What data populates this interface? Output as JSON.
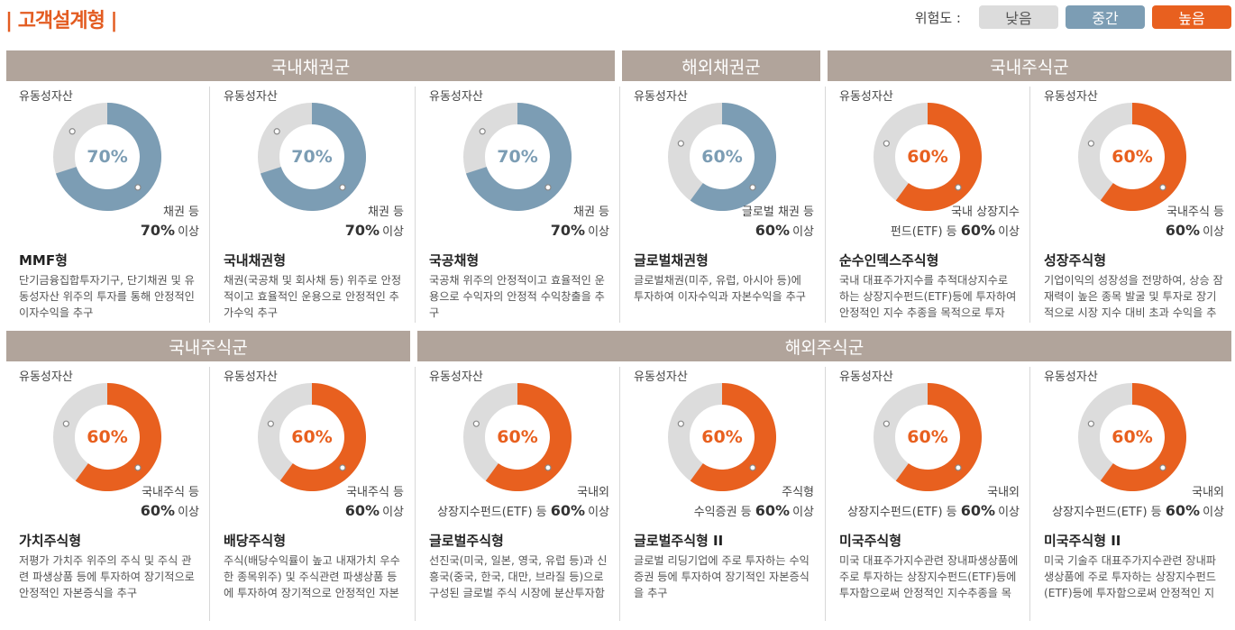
{
  "page": {
    "title": "| 고객설계형 |"
  },
  "legend": {
    "label": "위험도 :",
    "items": [
      {
        "label": "낮음",
        "bg": "#dcdcdc",
        "fg": "#555555"
      },
      {
        "label": "중간",
        "bg": "#7c9db4",
        "fg": "#ffffff"
      },
      {
        "label": "높음",
        "bg": "#e8601f",
        "fg": "#ffffff"
      }
    ]
  },
  "colors": {
    "blue": "#7c9db4",
    "orange": "#e8601f",
    "gray": "#dcdcdc"
  },
  "rows": [
    {
      "categories": [
        "국내채권군",
        "해외채권군",
        "국내주식군"
      ],
      "cards": [
        {
          "liquid_label": "유동성자산",
          "percent": 70,
          "percent_label": "70%",
          "risk": "blue",
          "right_label": "채권 등",
          "ratio_value": "70%",
          "ratio_suffix": "이상",
          "name": "MMF형",
          "desc": "단기금융집합투자기구, 단기채권 및 유동성자산 위주의 투자를 통해 안정적인 이자수익을 추구"
        },
        {
          "liquid_label": "유동성자산",
          "percent": 70,
          "percent_label": "70%",
          "risk": "blue",
          "right_label": "채권 등",
          "ratio_value": "70%",
          "ratio_suffix": "이상",
          "name": "국내채권형",
          "desc": "채권(국공채 및 회사채 등) 위주로 안정적이고 효율적인 운용으로 안정적인 추가수익 추구"
        },
        {
          "liquid_label": "유동성자산",
          "percent": 70,
          "percent_label": "70%",
          "risk": "blue",
          "right_label": "채권 등",
          "ratio_value": "70%",
          "ratio_suffix": "이상",
          "name": "국공채형",
          "desc": "국공채 위주의 안정적이고 효율적인 운용으로 수익자의 안정적 수익창출을 추구"
        },
        {
          "liquid_label": "유동성자산",
          "percent": 60,
          "percent_label": "60%",
          "risk": "blue",
          "right_label": "글로벌 채권 등",
          "ratio_value": "60%",
          "ratio_suffix": "이상",
          "name": "글로벌채권형",
          "desc": "글로벌채권(미주, 유럽, 아시아 등)에 투자하여 이자수익과 자본수익을 추구"
        },
        {
          "liquid_label": "유동성자산",
          "percent": 60,
          "percent_label": "60%",
          "risk": "orange",
          "right_label": "국내 상장지수",
          "ratio_prefix": "펀드(ETF) 등",
          "ratio_value": "60%",
          "ratio_suffix": "이상",
          "name": "순수인덱스주식형",
          "desc": "국내 대표주가지수를 추적대상지수로 하는 상장지수펀드(ETF)등에 투자하여 안정적인 지수 추종을 목적으로 투자"
        },
        {
          "liquid_label": "유동성자산",
          "percent": 60,
          "percent_label": "60%",
          "risk": "orange",
          "right_label": "국내주식 등",
          "ratio_value": "60%",
          "ratio_suffix": "이상",
          "name": "성장주식형",
          "desc": "기업이익의 성장성을 전망하여, 상승 잠재력이 높은 종목 발굴 및 투자로 장기적으로 시장 지수 대비 초과 수익을 추구"
        }
      ]
    },
    {
      "categories": [
        "국내주식군",
        "해외주식군"
      ],
      "cards": [
        {
          "liquid_label": "유동성자산",
          "percent": 60,
          "percent_label": "60%",
          "risk": "orange",
          "right_label": "국내주식 등",
          "ratio_value": "60%",
          "ratio_suffix": "이상",
          "name": "가치주식형",
          "desc": "저평가 가치주 위주의 주식 및 주식 관련 파생상품 등에 투자하여 장기적으로 안정적인 자본증식을 추구"
        },
        {
          "liquid_label": "유동성자산",
          "percent": 60,
          "percent_label": "60%",
          "risk": "orange",
          "right_label": "국내주식 등",
          "ratio_value": "60%",
          "ratio_suffix": "이상",
          "name": "배당주식형",
          "desc": "주식(배당수익률이 높고 내재가치 우수한 종목위주) 및 주식관련 파생상품 등에 투자하여 장기적으로 안정적인 자본증식 및 배당수익을 추구"
        },
        {
          "liquid_label": "유동성자산",
          "percent": 60,
          "percent_label": "60%",
          "risk": "orange",
          "right_label": "국내외",
          "ratio_prefix": "상장지수펀드(ETF) 등",
          "ratio_value": "60%",
          "ratio_suffix": "이상",
          "name": "글로벌주식형",
          "desc": "선진국(미국, 일본, 영국, 유럽 등)과 신흥국(중국, 한국, 대만, 브라질 등)으로 구성된 글로벌 주식 시장에 분산투자함으로써 장기적인 수익을 추구"
        },
        {
          "liquid_label": "유동성자산",
          "percent": 60,
          "percent_label": "60%",
          "risk": "orange",
          "right_label": "주식형",
          "ratio_prefix": "수익증권 등",
          "ratio_value": "60%",
          "ratio_suffix": "이상",
          "name": "글로벌주식형 II",
          "desc": "글로벌 리딩기업에 주로 투자하는 수익증권 등에 투자하여 장기적인 자본증식을 추구"
        },
        {
          "liquid_label": "유동성자산",
          "percent": 60,
          "percent_label": "60%",
          "risk": "orange",
          "right_label": "국내외",
          "ratio_prefix": "상장지수펀드(ETF) 등",
          "ratio_value": "60%",
          "ratio_suffix": "이상",
          "name": "미국주식형",
          "desc": "미국 대표주가지수관련 장내파생상품에 주로 투자하는 상장지수펀드(ETF)등에 투자함으로써 안정적인 지수추종을 목적으로 투자"
        },
        {
          "liquid_label": "유동성자산",
          "percent": 60,
          "percent_label": "60%",
          "risk": "orange",
          "right_label": "국내외",
          "ratio_prefix": "상장지수펀드(ETF) 등",
          "ratio_value": "60%",
          "ratio_suffix": "이상",
          "name": "미국주식형 II",
          "desc": "미국 기술주 대표주가지수관련 장내파생상품에 주로 투자하는 상장지수펀드(ETF)등에 투자함으로써 안정적인 지수추종을 목적으로 투자"
        }
      ]
    }
  ]
}
